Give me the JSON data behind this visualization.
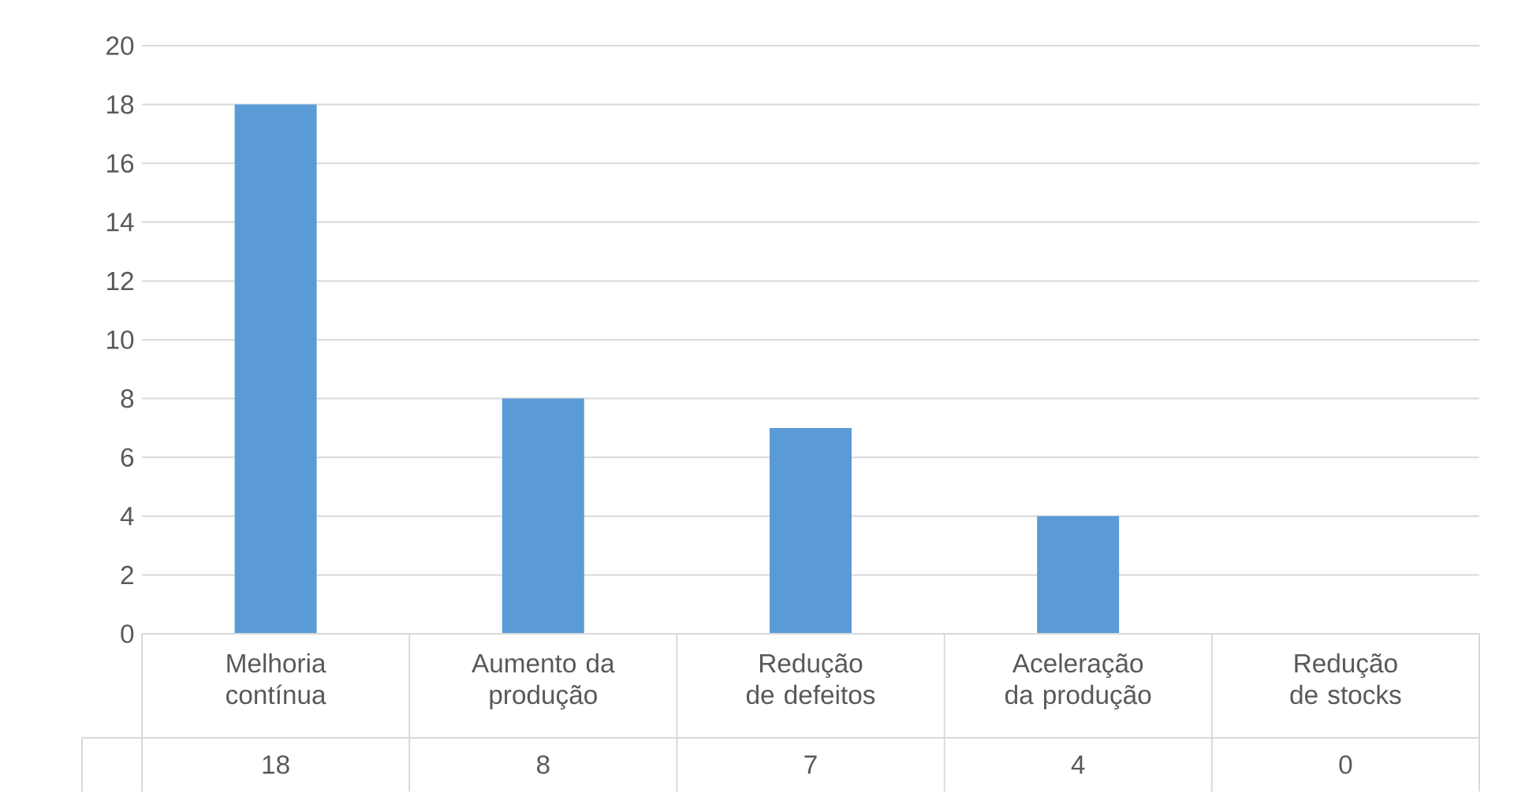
{
  "chart_data": {
    "type": "bar",
    "categories": [
      "Melhoria contínua",
      "Aumento da produção",
      "Redução de defeitos",
      "Aceleração da produção",
      "Redução de stocks"
    ],
    "values": [
      18,
      8,
      7,
      4,
      0
    ],
    "color": "#5b9bd5",
    "ylim": [
      0,
      20
    ],
    "yticks": [
      0,
      2,
      4,
      6,
      8,
      10,
      12,
      14,
      16,
      18,
      20
    ],
    "grid": "y",
    "data_labels": true
  }
}
